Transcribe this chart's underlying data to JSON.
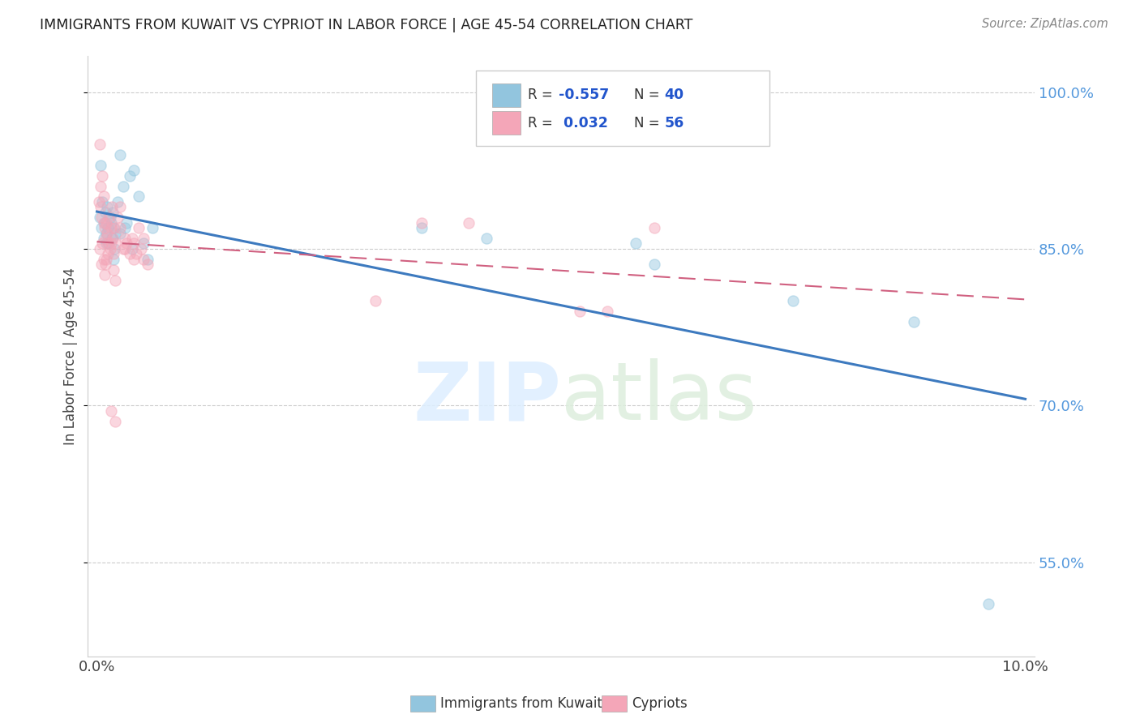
{
  "title": "IMMIGRANTS FROM KUWAIT VS CYPRIOT IN LABOR FORCE | AGE 45-54 CORRELATION CHART",
  "source": "Source: ZipAtlas.com",
  "ylabel": "In Labor Force | Age 45-54",
  "y_ticks": [
    1.0,
    0.85,
    0.7,
    0.55
  ],
  "y_tick_labels": [
    "100.0%",
    "85.0%",
    "70.0%",
    "55.0%"
  ],
  "legend_label1": "Immigrants from Kuwait",
  "legend_label2": "Cypriots",
  "blue_color": "#92c5de",
  "pink_color": "#f4a6b8",
  "blue_line_color": "#3d7abf",
  "pink_line_color": "#d06080",
  "blue_scatter": [
    [
      0.0003,
      0.88
    ],
    [
      0.0004,
      0.93
    ],
    [
      0.0005,
      0.87
    ],
    [
      0.0006,
      0.895
    ],
    [
      0.0007,
      0.86
    ],
    [
      0.0008,
      0.875
    ],
    [
      0.0009,
      0.885
    ],
    [
      0.001,
      0.865
    ],
    [
      0.0011,
      0.89
    ],
    [
      0.0012,
      0.87
    ],
    [
      0.0013,
      0.855
    ],
    [
      0.0014,
      0.88
    ],
    [
      0.0015,
      0.875
    ],
    [
      0.0016,
      0.86
    ],
    [
      0.0017,
      0.885
    ],
    [
      0.0018,
      0.87
    ],
    [
      0.0019,
      0.85
    ],
    [
      0.002,
      0.865
    ],
    [
      0.0022,
      0.895
    ],
    [
      0.0025,
      0.94
    ],
    [
      0.0028,
      0.91
    ],
    [
      0.003,
      0.87
    ],
    [
      0.0032,
      0.875
    ],
    [
      0.0035,
      0.92
    ],
    [
      0.0038,
      0.85
    ],
    [
      0.004,
      0.925
    ],
    [
      0.0045,
      0.9
    ],
    [
      0.005,
      0.855
    ],
    [
      0.0055,
      0.84
    ],
    [
      0.006,
      0.87
    ],
    [
      0.0018,
      0.84
    ],
    [
      0.0025,
      0.865
    ],
    [
      0.035,
      0.87
    ],
    [
      0.042,
      0.86
    ],
    [
      0.058,
      0.855
    ],
    [
      0.06,
      0.835
    ],
    [
      0.075,
      0.8
    ],
    [
      0.088,
      0.78
    ],
    [
      0.096,
      0.51
    ],
    [
      0.001,
      0.855
    ]
  ],
  "pink_scatter": [
    [
      0.0002,
      0.895
    ],
    [
      0.0003,
      0.95
    ],
    [
      0.0004,
      0.89
    ],
    [
      0.0005,
      0.88
    ],
    [
      0.0006,
      0.92
    ],
    [
      0.0007,
      0.9
    ],
    [
      0.0008,
      0.87
    ],
    [
      0.0009,
      0.86
    ],
    [
      0.001,
      0.875
    ],
    [
      0.0011,
      0.865
    ],
    [
      0.0012,
      0.855
    ],
    [
      0.0013,
      0.88
    ],
    [
      0.0014,
      0.85
    ],
    [
      0.0015,
      0.87
    ],
    [
      0.0016,
      0.89
    ],
    [
      0.0017,
      0.86
    ],
    [
      0.0018,
      0.845
    ],
    [
      0.0019,
      0.87
    ],
    [
      0.002,
      0.855
    ],
    [
      0.0022,
      0.88
    ],
    [
      0.0025,
      0.89
    ],
    [
      0.0028,
      0.85
    ],
    [
      0.003,
      0.86
    ],
    [
      0.0032,
      0.855
    ],
    [
      0.0035,
      0.845
    ],
    [
      0.0038,
      0.86
    ],
    [
      0.004,
      0.855
    ],
    [
      0.0042,
      0.845
    ],
    [
      0.0045,
      0.87
    ],
    [
      0.0048,
      0.85
    ],
    [
      0.005,
      0.84
    ],
    [
      0.0055,
      0.835
    ],
    [
      0.0005,
      0.835
    ],
    [
      0.0008,
      0.825
    ],
    [
      0.001,
      0.84
    ],
    [
      0.035,
      0.875
    ],
    [
      0.04,
      0.875
    ],
    [
      0.052,
      0.79
    ],
    [
      0.055,
      0.79
    ],
    [
      0.06,
      0.87
    ],
    [
      0.002,
      0.685
    ],
    [
      0.0015,
      0.695
    ],
    [
      0.03,
      0.8
    ],
    [
      0.0025,
      0.87
    ],
    [
      0.0004,
      0.91
    ],
    [
      0.0003,
      0.85
    ],
    [
      0.0006,
      0.855
    ],
    [
      0.0007,
      0.84
    ],
    [
      0.0015,
      0.855
    ],
    [
      0.0018,
      0.83
    ],
    [
      0.002,
      0.82
    ],
    [
      0.003,
      0.85
    ],
    [
      0.004,
      0.84
    ],
    [
      0.0007,
      0.875
    ],
    [
      0.005,
      0.86
    ],
    [
      0.0012,
      0.845
    ],
    [
      0.0009,
      0.835
    ]
  ],
  "xlim": [
    -0.001,
    0.101
  ],
  "ylim": [
    0.46,
    1.035
  ],
  "marker_size": 90,
  "marker_alpha": 0.45,
  "figsize": [
    14.06,
    8.92
  ],
  "dpi": 100
}
